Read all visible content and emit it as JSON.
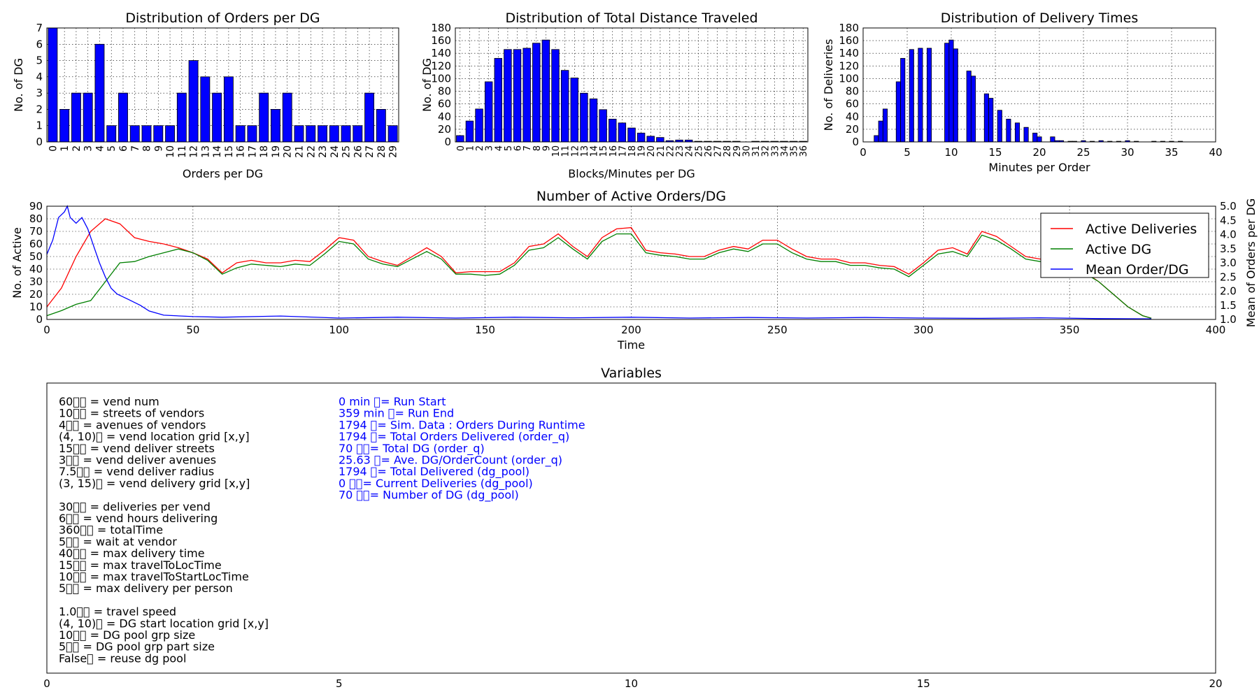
{
  "charts": [
    {
      "type": "bar",
      "title": "Distribution of Orders per DG",
      "xlabel": "Orders per DG",
      "ylabel": "No. of DG",
      "ylim": [
        0,
        7
      ],
      "yticks": [
        0,
        1,
        2,
        3,
        4,
        5,
        6,
        7
      ],
      "grid": true,
      "categories": [
        "0",
        "1",
        "2",
        "3",
        "4",
        "5",
        "6",
        "7",
        "8",
        "9",
        "10",
        "11",
        "12",
        "13",
        "14",
        "15",
        "16",
        "17",
        "18",
        "19",
        "20",
        "21",
        "22",
        "23",
        "24",
        "25",
        "26",
        "27",
        "28",
        "29"
      ],
      "values": [
        7,
        2,
        3,
        3,
        6,
        1,
        3,
        1,
        1,
        1,
        1,
        3,
        5,
        4,
        3,
        4,
        1,
        1,
        3,
        2,
        3,
        1,
        1,
        1,
        1,
        1,
        1,
        3,
        2,
        1
      ],
      "color": "#0000ff"
    },
    {
      "type": "bar",
      "title": "Distribution of Total Distance Traveled",
      "xlabel": "Blocks/Minutes per DG",
      "ylabel": "No. of DG",
      "ylim": [
        0,
        180
      ],
      "yticks": [
        0,
        20,
        40,
        60,
        80,
        100,
        120,
        140,
        160,
        180
      ],
      "grid": true,
      "categories": [
        "0",
        "1",
        "2",
        "3",
        "4",
        "5",
        "6",
        "7",
        "8",
        "9",
        "10",
        "11",
        "12",
        "13",
        "14",
        "15",
        "16",
        "17",
        "18",
        "19",
        "20",
        "21",
        "22",
        "23",
        "24",
        "25",
        "26",
        "27",
        "28",
        "29",
        "30",
        "31",
        "32",
        "33",
        "34",
        "35",
        "36"
      ],
      "values": [
        10,
        33,
        52,
        95,
        132,
        146,
        146,
        148,
        156,
        161,
        146,
        113,
        101,
        77,
        68,
        51,
        36,
        30,
        22,
        14,
        9,
        7,
        2,
        3,
        3,
        1,
        1,
        1,
        1,
        1,
        0,
        1,
        1,
        1,
        1,
        1,
        1
      ],
      "color": "#0000ff"
    },
    {
      "type": "bar",
      "title": "Distribution of Delivery Times",
      "xlabel": "Minutes per Order",
      "ylabel": "No. of Deliveries",
      "xlim": [
        0,
        40
      ],
      "ylim": [
        0,
        180
      ],
      "xticks": [
        0,
        5,
        10,
        15,
        20,
        25,
        30,
        35,
        40
      ],
      "yticks": [
        0,
        20,
        40,
        60,
        80,
        100,
        120,
        140,
        160,
        180
      ],
      "grid": true,
      "x": [
        1.5,
        2,
        2.5,
        3.5,
        4,
        4.5,
        5.5,
        6,
        6.5,
        7.5,
        8,
        8.5,
        9.5,
        10,
        10.5,
        11.5,
        12,
        12.5,
        13.5,
        14,
        14.5,
        15.5,
        16,
        16.5,
        17.5,
        18,
        18.5,
        19.5,
        20,
        20.5,
        21.5,
        22,
        22.5,
        23.5,
        24,
        25,
        26,
        27,
        28,
        29,
        30,
        31,
        32,
        33,
        34,
        35,
        36
      ],
      "values": [
        10,
        33,
        52,
        0,
        95,
        132,
        146,
        0,
        148,
        148,
        0,
        0,
        156,
        161,
        147,
        0,
        112,
        104,
        0,
        76,
        69,
        50,
        0,
        36,
        30,
        0,
        23,
        14,
        8,
        0,
        8,
        2,
        2,
        1,
        1,
        2,
        1,
        2,
        1,
        1,
        2,
        1,
        0,
        1,
        1,
        1,
        1
      ],
      "color": "#0000ff"
    },
    {
      "type": "line",
      "title": "Number of Active Orders/DG",
      "xlabel": "Time",
      "ylabel": "No. of Active",
      "y2label": "Mean of Orders per DG",
      "xlim": [
        0,
        400
      ],
      "ylim": [
        0,
        90
      ],
      "y2lim": [
        1.0,
        5.0
      ],
      "xticks": [
        0,
        50,
        100,
        150,
        200,
        250,
        300,
        350,
        400
      ],
      "yticks": [
        0,
        10,
        20,
        30,
        40,
        50,
        60,
        70,
        80,
        90
      ],
      "y2ticks": [
        "1.0",
        "1.5",
        "2.0",
        "2.5",
        "3.0",
        "3.5",
        "4.0",
        "4.5",
        "5.0"
      ],
      "grid": true,
      "legend_position": "top-right",
      "series": [
        {
          "name": "Active Deliveries",
          "color": "#ff0000",
          "axis": "left",
          "points": [
            [
              0,
              10
            ],
            [
              5,
              25
            ],
            [
              10,
              50
            ],
            [
              15,
              70
            ],
            [
              20,
              80
            ],
            [
              25,
              76
            ],
            [
              30,
              65
            ],
            [
              35,
              62
            ],
            [
              40,
              60
            ],
            [
              45,
              57
            ],
            [
              50,
              53
            ],
            [
              55,
              48
            ],
            [
              60,
              37
            ],
            [
              65,
              45
            ],
            [
              70,
              47
            ],
            [
              75,
              45
            ],
            [
              80,
              45
            ],
            [
              85,
              47
            ],
            [
              90,
              46
            ],
            [
              95,
              55
            ],
            [
              100,
              65
            ],
            [
              105,
              63
            ],
            [
              110,
              50
            ],
            [
              115,
              46
            ],
            [
              120,
              43
            ],
            [
              125,
              50
            ],
            [
              130,
              57
            ],
            [
              135,
              50
            ],
            [
              140,
              37
            ],
            [
              145,
              38
            ],
            [
              150,
              38
            ],
            [
              155,
              38
            ],
            [
              160,
              45
            ],
            [
              165,
              58
            ],
            [
              170,
              60
            ],
            [
              175,
              68
            ],
            [
              180,
              58
            ],
            [
              185,
              50
            ],
            [
              190,
              65
            ],
            [
              195,
              72
            ],
            [
              200,
              73
            ],
            [
              205,
              55
            ],
            [
              210,
              53
            ],
            [
              215,
              52
            ],
            [
              220,
              50
            ],
            [
              225,
              50
            ],
            [
              230,
              55
            ],
            [
              235,
              58
            ],
            [
              240,
              56
            ],
            [
              245,
              63
            ],
            [
              250,
              63
            ],
            [
              255,
              56
            ],
            [
              260,
              50
            ],
            [
              265,
              48
            ],
            [
              270,
              48
            ],
            [
              275,
              45
            ],
            [
              280,
              45
            ],
            [
              285,
              43
            ],
            [
              290,
              42
            ],
            [
              295,
              36
            ],
            [
              300,
              45
            ],
            [
              305,
              55
            ],
            [
              310,
              57
            ],
            [
              315,
              52
            ],
            [
              320,
              70
            ],
            [
              325,
              66
            ],
            [
              330,
              58
            ],
            [
              335,
              50
            ],
            [
              340,
              48
            ],
            [
              345,
              48
            ],
            [
              350,
              42
            ],
            [
              355,
              38
            ],
            [
              360,
              30
            ],
            [
              365,
              20
            ],
            [
              370,
              10
            ],
            [
              375,
              3
            ],
            [
              378,
              1
            ]
          ]
        },
        {
          "name": "Active DG",
          "color": "#008000",
          "axis": "left",
          "points": [
            [
              0,
              3
            ],
            [
              5,
              7
            ],
            [
              10,
              12
            ],
            [
              15,
              15
            ],
            [
              20,
              30
            ],
            [
              25,
              45
            ],
            [
              30,
              46
            ],
            [
              35,
              50
            ],
            [
              40,
              53
            ],
            [
              45,
              56
            ],
            [
              50,
              53
            ],
            [
              55,
              47
            ],
            [
              60,
              36
            ],
            [
              65,
              41
            ],
            [
              70,
              44
            ],
            [
              75,
              43
            ],
            [
              80,
              42
            ],
            [
              85,
              44
            ],
            [
              90,
              43
            ],
            [
              95,
              52
            ],
            [
              100,
              62
            ],
            [
              105,
              60
            ],
            [
              110,
              48
            ],
            [
              115,
              44
            ],
            [
              120,
              42
            ],
            [
              125,
              48
            ],
            [
              130,
              54
            ],
            [
              135,
              48
            ],
            [
              140,
              36
            ],
            [
              145,
              36
            ],
            [
              150,
              35
            ],
            [
              155,
              36
            ],
            [
              160,
              43
            ],
            [
              165,
              55
            ],
            [
              170,
              57
            ],
            [
              175,
              65
            ],
            [
              180,
              56
            ],
            [
              185,
              48
            ],
            [
              190,
              62
            ],
            [
              195,
              68
            ],
            [
              200,
              68
            ],
            [
              205,
              53
            ],
            [
              210,
              51
            ],
            [
              215,
              50
            ],
            [
              220,
              48
            ],
            [
              225,
              48
            ],
            [
              230,
              53
            ],
            [
              235,
              56
            ],
            [
              240,
              54
            ],
            [
              245,
              60
            ],
            [
              250,
              60
            ],
            [
              255,
              53
            ],
            [
              260,
              48
            ],
            [
              265,
              46
            ],
            [
              270,
              46
            ],
            [
              275,
              43
            ],
            [
              280,
              43
            ],
            [
              285,
              41
            ],
            [
              290,
              40
            ],
            [
              295,
              34
            ],
            [
              300,
              43
            ],
            [
              305,
              52
            ],
            [
              310,
              54
            ],
            [
              315,
              50
            ],
            [
              320,
              67
            ],
            [
              325,
              63
            ],
            [
              330,
              56
            ],
            [
              335,
              48
            ],
            [
              340,
              46
            ],
            [
              345,
              46
            ],
            [
              350,
              41
            ],
            [
              355,
              37
            ],
            [
              360,
              30
            ],
            [
              365,
              20
            ],
            [
              370,
              10
            ],
            [
              375,
              3
            ],
            [
              378,
              1
            ]
          ]
        },
        {
          "name": "Mean Order/DG",
          "color": "#0000ff",
          "axis": "right",
          "points": [
            [
              0,
              3.3
            ],
            [
              2,
              3.8
            ],
            [
              4,
              4.6
            ],
            [
              6,
              4.8
            ],
            [
              7,
              5.0
            ],
            [
              8,
              4.6
            ],
            [
              9,
              4.5
            ],
            [
              10,
              4.4
            ],
            [
              12,
              4.6
            ],
            [
              14,
              4.2
            ],
            [
              16,
              3.6
            ],
            [
              18,
              3.0
            ],
            [
              20,
              2.5
            ],
            [
              22,
              2.1
            ],
            [
              24,
              1.9
            ],
            [
              26,
              1.8
            ],
            [
              28,
              1.7
            ],
            [
              30,
              1.6
            ],
            [
              32,
              1.5
            ],
            [
              35,
              1.3
            ],
            [
              40,
              1.15
            ],
            [
              50,
              1.1
            ],
            [
              60,
              1.08
            ],
            [
              80,
              1.12
            ],
            [
              100,
              1.05
            ],
            [
              120,
              1.08
            ],
            [
              140,
              1.05
            ],
            [
              160,
              1.08
            ],
            [
              180,
              1.06
            ],
            [
              200,
              1.08
            ],
            [
              220,
              1.05
            ],
            [
              240,
              1.07
            ],
            [
              260,
              1.05
            ],
            [
              280,
              1.07
            ],
            [
              300,
              1.05
            ],
            [
              320,
              1.04
            ],
            [
              340,
              1.06
            ],
            [
              360,
              1.03
            ],
            [
              378,
              1.02
            ]
          ]
        }
      ]
    }
  ],
  "variables": {
    "title": "Variables",
    "xlim": [
      0,
      20
    ],
    "xticks": [
      0,
      5,
      10,
      15,
      20
    ],
    "left_color": "#000000",
    "right_color": "#0000ff",
    "left_lines": [
      "60\u0000\u0000 = vend num",
      "10\u0000\u0000 = streets of vendors",
      "4\u0000\u0000 = avenues of vendors",
      "(4, 10)\u0000 = vend location grid [x,y]",
      "15\u0000\u0000 = vend deliver streets",
      "3\u0000\u0000 = vend deliver avenues",
      "7.5\u0000\u0000 = vend deliver radius",
      "(3, 15)\u0000 = vend delivery grid [x,y]",
      "",
      "30\u0000\u0000 = deliveries per vend",
      "6\u0000\u0000 = vend hours delivering",
      "360\u0000\u0000 = totalTime",
      "5\u0000\u0000 = wait at vendor",
      "40\u0000\u0000 = max delivery time",
      "15\u0000\u0000 = max travelToLocTime",
      "10\u0000\u0000 = max travelToStartLocTime",
      "5\u0000\u0000 = max delivery per person",
      "",
      "1.0\u0000\u0000 = travel speed",
      "(4, 10)\u0000 = DG start location grid [x,y]",
      "10\u0000\u0000 = DG pool grp size",
      "5\u0000\u0000 = DG pool grp part size",
      "False\u0000 = reuse dg pool"
    ],
    "right_lines": [
      "0 min \u0000= Run Start",
      "359 min \u0000= Run End",
      "1794 \u0000= Sim. Data : Orders During Runtime",
      "1794 \u0000= Total Orders Delivered (order_q)",
      "70 \u0000\u0000= Total DG (order_q)",
      "25.63 \u0000= Ave. DG/OrderCount (order_q)",
      "1794 \u0000= Total Delivered (dg_pool)",
      "0 \u0000\u0000= Current Deliveries (dg_pool)",
      "70 \u0000\u0000= Number of DG (dg_pool)"
    ]
  }
}
